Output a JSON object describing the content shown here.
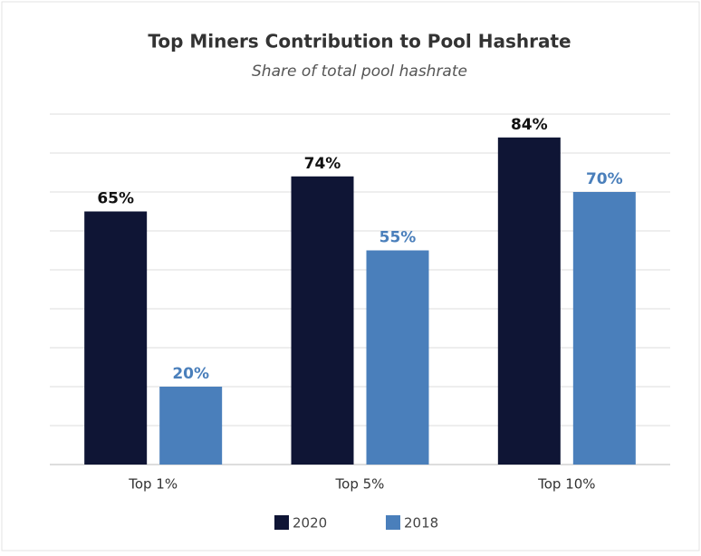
{
  "chart_data": {
    "type": "bar",
    "title": "Top Miners Contribution to Pool Hashrate",
    "subtitle": "Share of total pool hashrate",
    "categories": [
      "Top 1%",
      "Top 5%",
      "Top 10%"
    ],
    "series": [
      {
        "name": "2020",
        "color": "#0f1535",
        "values": [
          65,
          74,
          84
        ],
        "value_labels": [
          "65%",
          "74%",
          "84%"
        ]
      },
      {
        "name": "2018",
        "color": "#4a7fbb",
        "values": [
          20,
          55,
          70
        ],
        "value_labels": [
          "20%",
          "55%",
          "70%"
        ]
      }
    ],
    "ylim": [
      0,
      90
    ],
    "yticks": [
      0,
      10,
      20,
      30,
      40,
      50,
      60,
      70,
      80,
      90
    ],
    "grid": true,
    "legend": "bottom"
  }
}
